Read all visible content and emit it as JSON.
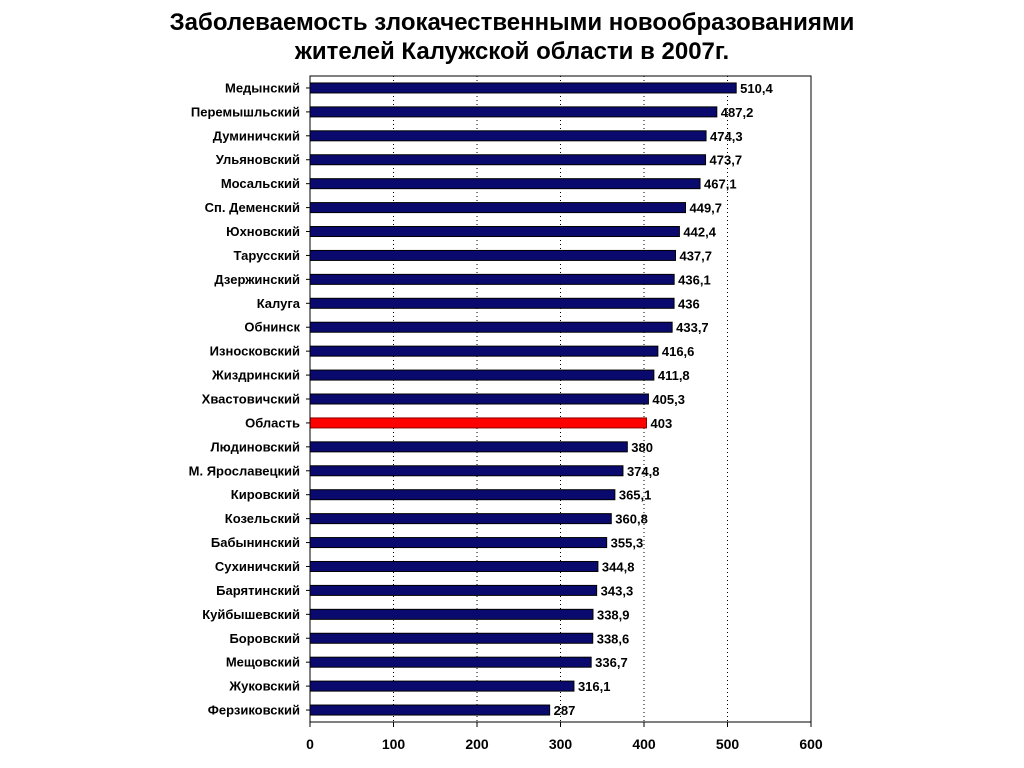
{
  "title": {
    "line1": "Заболеваемость злокачественными новообразованиями",
    "line2": "жителей Калужской области в 2007г."
  },
  "colors": {
    "bar": "#0a0a6e",
    "highlight": "#ff0000",
    "highlight_border": "#8b0000"
  },
  "chart_data": {
    "type": "bar",
    "orientation": "horizontal",
    "categories": [
      "Медынский",
      "Перемышльский",
      "Думиничский",
      "Ульяновский",
      "Мосальский",
      "Сп. Деменский",
      "Юхновский",
      "Тарусский",
      "Дзержинский",
      "Калуга",
      "Обнинск",
      "Износковский",
      "Жиздринский",
      "Хвастовичский",
      "Область",
      "Людиновский",
      "М. Ярославецкий",
      "Кировский",
      "Козельский",
      "Бабынинский",
      "Сухиничский",
      "Барятинский",
      "Куйбышевский",
      "Боровский",
      "Мещовский",
      "Жуковский",
      "Ферзиковский"
    ],
    "values": [
      510.4,
      487.2,
      474.3,
      473.7,
      467.1,
      449.7,
      442.4,
      437.7,
      436.1,
      436,
      433.7,
      416.6,
      411.8,
      405.3,
      403,
      380,
      374.8,
      365.1,
      360.8,
      355.3,
      344.8,
      343.3,
      338.9,
      338.6,
      336.7,
      316.1,
      287
    ],
    "value_labels": [
      "510,4",
      "487,2",
      "474,3",
      "473,7",
      "467,1",
      "449,7",
      "442,4",
      "437,7",
      "436,1",
      "436",
      "433,7",
      "416,6",
      "411,8",
      "405,3",
      "403",
      "380",
      "374,8",
      "365,1",
      "360,8",
      "355,3",
      "344,8",
      "343,3",
      "338,9",
      "338,6",
      "336,7",
      "316,1",
      "287"
    ],
    "highlight": "Область",
    "xlim": [
      0,
      600
    ],
    "xticks": [
      "0",
      "100",
      "200",
      "300",
      "400",
      "500",
      "600"
    ],
    "grid": "vertical dotted",
    "title": "Заболеваемость злокачественными новообразованиями жителей Калужской области в 2007г."
  }
}
